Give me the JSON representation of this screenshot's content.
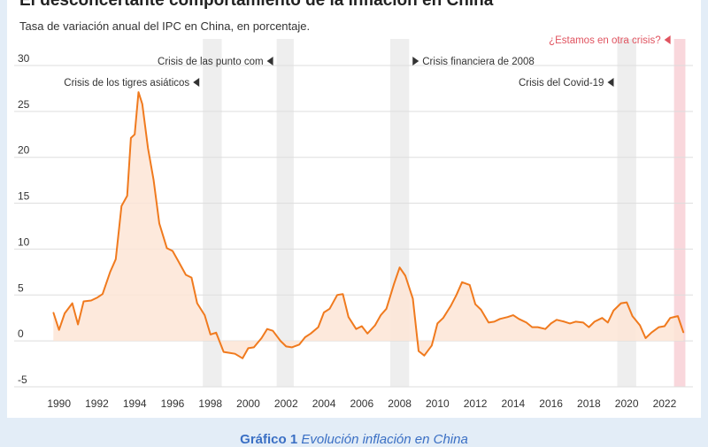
{
  "title": "El desconcertante comportamiento de la inflación en China",
  "subtitle": "Tasa de variación anual del IPC en China, en porcentaje.",
  "caption": {
    "label": "Gráfico 1",
    "text": " Evolución inflación en China"
  },
  "colors": {
    "line": "#f07a1e",
    "area": "#fde5d6",
    "shade": "#eeeeee",
    "shade_red": "#f9d7dc",
    "red_text": "#e05460"
  },
  "chart_data": {
    "type": "area",
    "ylim": [
      -5,
      30
    ],
    "xlim": [
      1989.5,
      2023.5
    ],
    "yticks": [
      -5,
      0,
      5,
      10,
      15,
      20,
      25,
      30
    ],
    "xticks": [
      1990,
      1992,
      1994,
      1996,
      1998,
      2000,
      2002,
      2004,
      2006,
      2008,
      2010,
      2012,
      2014,
      2016,
      2018,
      2020,
      2022
    ],
    "grid": true,
    "series": [
      {
        "x": [
          1989.7,
          1990.0,
          1990.3,
          1990.7,
          1991.0,
          1991.3,
          1991.7,
          1992.0,
          1992.3,
          1992.7,
          1993.0,
          1993.3,
          1993.6,
          1993.8,
          1994.0,
          1994.2,
          1994.4,
          1994.7,
          1995.0,
          1995.3,
          1995.7,
          1996.0,
          1996.3,
          1996.7,
          1997.0,
          1997.3,
          1997.7,
          1998.0,
          1998.3,
          1998.7,
          1999.0,
          1999.3,
          1999.7,
          2000.0,
          2000.3,
          2000.7,
          2001.0,
          2001.3,
          2001.7,
          2002.0,
          2002.3,
          2002.7,
          2003.0,
          2003.3,
          2003.7,
          2004.0,
          2004.3,
          2004.7,
          2005.0,
          2005.3,
          2005.7,
          2006.0,
          2006.3,
          2006.7,
          2007.0,
          2007.3,
          2007.7,
          2008.0,
          2008.3,
          2008.7,
          2009.0,
          2009.3,
          2009.7,
          2010.0,
          2010.3,
          2010.7,
          2011.0,
          2011.3,
          2011.7,
          2012.0,
          2012.3,
          2012.7,
          2013.0,
          2013.3,
          2013.7,
          2014.0,
          2014.3,
          2014.7,
          2015.0,
          2015.3,
          2015.7,
          2016.0,
          2016.3,
          2016.7,
          2017.0,
          2017.3,
          2017.7,
          2018.0,
          2018.3,
          2018.7,
          2019.0,
          2019.3,
          2019.7,
          2020.0,
          2020.3,
          2020.7,
          2021.0,
          2021.3,
          2021.7,
          2022.0,
          2022.3,
          2022.7,
          2023.0
        ],
        "y": [
          3.1,
          1.2,
          3.0,
          4.1,
          1.8,
          4.3,
          4.4,
          4.7,
          5.1,
          7.5,
          8.9,
          14.7,
          15.8,
          22.1,
          22.5,
          27.1,
          25.8,
          21.0,
          17.5,
          12.8,
          10.1,
          9.8,
          8.7,
          7.2,
          6.9,
          4.1,
          2.8,
          0.7,
          0.9,
          -1.2,
          -1.3,
          -1.4,
          -1.9,
          -0.8,
          -0.7,
          0.3,
          1.3,
          1.1,
          0.0,
          -0.6,
          -0.7,
          -0.4,
          0.4,
          0.8,
          1.5,
          3.1,
          3.5,
          5.0,
          5.1,
          2.6,
          1.3,
          1.6,
          0.8,
          1.7,
          2.8,
          3.5,
          6.2,
          8.0,
          7.1,
          4.6,
          -1.1,
          -1.6,
          -0.5,
          1.9,
          2.5,
          3.8,
          5.0,
          6.4,
          6.1,
          4.0,
          3.4,
          2.0,
          2.1,
          2.4,
          2.6,
          2.8,
          2.4,
          2.0,
          1.5,
          1.5,
          1.3,
          1.9,
          2.3,
          2.1,
          1.9,
          2.1,
          2.0,
          1.5,
          2.1,
          2.5,
          2.0,
          3.3,
          4.1,
          4.2,
          2.7,
          1.7,
          0.3,
          0.9,
          1.5,
          1.6,
          2.5,
          2.7,
          0.9
        ]
      }
    ],
    "shaded_periods": [
      {
        "from": 1997.6,
        "to": 1998.6,
        "label": "Crisis de los tigres asiáticos",
        "label_align": "left",
        "label_row": 2,
        "color": "shade"
      },
      {
        "from": 2001.5,
        "to": 2002.4,
        "label": "Crisis de las punto com",
        "label_align": "left",
        "label_row": 1,
        "color": "shade"
      },
      {
        "from": 2007.5,
        "to": 2008.5,
        "label": "Crisis financiera de 2008",
        "label_align": "right",
        "label_row": 1,
        "color": "shade"
      },
      {
        "from": 2019.5,
        "to": 2020.5,
        "label": "Crisis del Covid-19",
        "label_align": "left",
        "label_row": 2,
        "color": "shade"
      },
      {
        "from": 2022.5,
        "to": 2023.1,
        "label": "¿Estamos en otra crisis?",
        "label_align": "left",
        "label_row": 0,
        "color": "shade_red"
      }
    ]
  }
}
